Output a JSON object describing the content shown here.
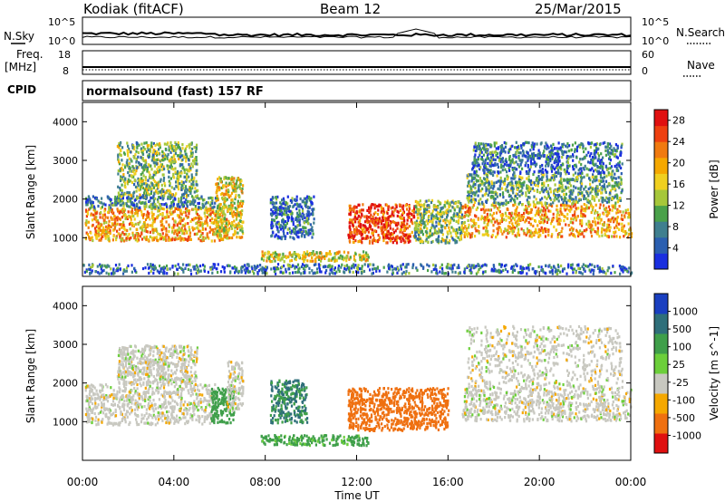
{
  "header": {
    "radar": "Kodiak (fitACF)",
    "beam": "Beam 12",
    "date": "25/Mar/2015"
  },
  "strip_labels": {
    "nsky": "N.Sky",
    "nsearch": "N.Search",
    "freq_line1": "Freq.",
    "freq_line2": "[MHz]",
    "nave": "Nave",
    "cpid": "CPID",
    "cpid_value": "normalsound (fast) 157 RF",
    "nsky_ticks": [
      "10^5",
      "10^0"
    ],
    "nsearch_ticks": [
      "10^5",
      "10^0"
    ],
    "freq_ticks": [
      "18",
      "8"
    ],
    "nave_ticks": [
      "60",
      "0"
    ]
  },
  "chart_data": [
    {
      "type": "heatmap",
      "title": "Power",
      "ylabel": "Slant Range [km]",
      "xlabel": "",
      "ylim": [
        0,
        4500
      ],
      "yticks": [
        "1000",
        "2000",
        "3000",
        "4000"
      ],
      "xticks": [
        "00:00",
        "04:00",
        "08:00",
        "12:00",
        "16:00",
        "20:00",
        "00:00"
      ],
      "colorbar": {
        "label": "Power [dB]",
        "ticks": [
          "4",
          "8",
          "12",
          "16",
          "20",
          "24",
          "28"
        ],
        "range": [
          0,
          30
        ],
        "colors": [
          "#1a2fe0",
          "#2b5fb0",
          "#3f7f8f",
          "#4aa14a",
          "#a6c73a",
          "#f0d020",
          "#f5a800",
          "#f07a10",
          "#ee4010",
          "#e01010"
        ]
      },
      "regions": [
        {
          "t": [
            0.1,
            6.3
          ],
          "r": [
            950,
            1800
          ],
          "v": 20
        },
        {
          "t": [
            0.1,
            5.8
          ],
          "r": [
            1800,
            2100
          ],
          "v": 8
        },
        {
          "t": [
            1.5,
            5.0
          ],
          "r": [
            2100,
            3500
          ],
          "v": 12
        },
        {
          "t": [
            5.8,
            7.0
          ],
          "r": [
            1000,
            2600
          ],
          "v": 16
        },
        {
          "t": [
            8.2,
            10.1
          ],
          "r": [
            1000,
            2100
          ],
          "v": 6
        },
        {
          "t": [
            7.8,
            12.5
          ],
          "r": [
            420,
            680
          ],
          "v": 16
        },
        {
          "t": [
            11.6,
            14.5
          ],
          "r": [
            900,
            1900
          ],
          "v": 26
        },
        {
          "t": [
            14.5,
            16.6
          ],
          "r": [
            900,
            2000
          ],
          "v": 12
        },
        {
          "t": [
            16.6,
            24.0
          ],
          "r": [
            1050,
            1900
          ],
          "v": 20
        },
        {
          "t": [
            16.8,
            23.6
          ],
          "r": [
            1900,
            2700
          ],
          "v": 10
        },
        {
          "t": [
            17.0,
            23.6
          ],
          "r": [
            2700,
            3500
          ],
          "v": 6
        },
        {
          "t": [
            0.0,
            24.0
          ],
          "r": [
            100,
            350
          ],
          "v": 6
        }
      ]
    },
    {
      "type": "heatmap",
      "title": "Velocity",
      "ylabel": "Slant Range [km]",
      "xlabel": "Time UT",
      "ylim": [
        0,
        4500
      ],
      "yticks": [
        "1000",
        "2000",
        "3000",
        "4000"
      ],
      "xticks": [
        "00:00",
        "04:00",
        "08:00",
        "12:00",
        "16:00",
        "20:00",
        "00:00"
      ],
      "colorbar": {
        "label": "Velocity [m s^-1]",
        "ticks": [
          "1000",
          "500",
          "100",
          "25",
          "-25",
          "-100",
          "-500",
          "-1000"
        ],
        "colors": [
          "#1a3fc0",
          "#2f6f7a",
          "#3f9f4a",
          "#6ccf3a",
          "#c8c8c0",
          "#f5a800",
          "#ef7010",
          "#e01010"
        ]
      },
      "regions": [
        {
          "t": [
            0.1,
            5.8
          ],
          "r": [
            950,
            2000
          ],
          "v": 0
        },
        {
          "t": [
            1.5,
            5.0
          ],
          "r": [
            2000,
            3000
          ],
          "v": 0
        },
        {
          "t": [
            5.6,
            6.6
          ],
          "r": [
            1000,
            1900
          ],
          "v": 200
        },
        {
          "t": [
            6.3,
            7.0
          ],
          "r": [
            1300,
            2600
          ],
          "v": 0
        },
        {
          "t": [
            8.2,
            9.8
          ],
          "r": [
            1000,
            2100
          ],
          "v": 300
        },
        {
          "t": [
            7.8,
            12.5
          ],
          "r": [
            420,
            680
          ],
          "v": 80
        },
        {
          "t": [
            11.6,
            16.0
          ],
          "r": [
            800,
            1900
          ],
          "v": -200
        },
        {
          "t": [
            16.6,
            24.0
          ],
          "r": [
            1050,
            1900
          ],
          "v": 0
        },
        {
          "t": [
            16.8,
            23.6
          ],
          "r": [
            1900,
            3500
          ],
          "v": 0
        }
      ]
    }
  ]
}
